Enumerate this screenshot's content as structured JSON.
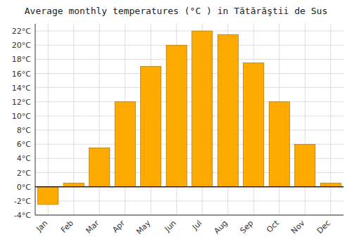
{
  "chart_data": {
    "type": "bar",
    "title": "Average monthly temperatures (°C ) in Tătărăştii de Sus",
    "categories": [
      "Jan",
      "Feb",
      "Mar",
      "Apr",
      "May",
      "Jun",
      "Jul",
      "Aug",
      "Sep",
      "Oct",
      "Nov",
      "Dec"
    ],
    "values": [
      -2.5,
      0.5,
      5.5,
      12.0,
      17.0,
      20.0,
      22.0,
      21.5,
      17.5,
      12.0,
      6.0,
      0.5
    ],
    "color": "#FFAA00",
    "ylim": [
      -4,
      23
    ],
    "yticks": [
      {
        "value": -4,
        "label": "-4°C"
      },
      {
        "value": -2,
        "label": "-2°C"
      },
      {
        "value": 0,
        "label": "0°C"
      },
      {
        "value": 2,
        "label": "2°C"
      },
      {
        "value": 4,
        "label": "4°C"
      },
      {
        "value": 6,
        "label": "6°C"
      },
      {
        "value": 8,
        "label": "8°C"
      },
      {
        "value": 10,
        "label": "10°C"
      },
      {
        "value": 12,
        "label": "12°C"
      },
      {
        "value": 14,
        "label": "14°C"
      },
      {
        "value": 16,
        "label": "16°C"
      },
      {
        "value": 18,
        "label": "18°C"
      },
      {
        "value": 20,
        "label": "20°C"
      },
      {
        "value": 22,
        "label": "22°C"
      }
    ],
    "grid": true
  }
}
